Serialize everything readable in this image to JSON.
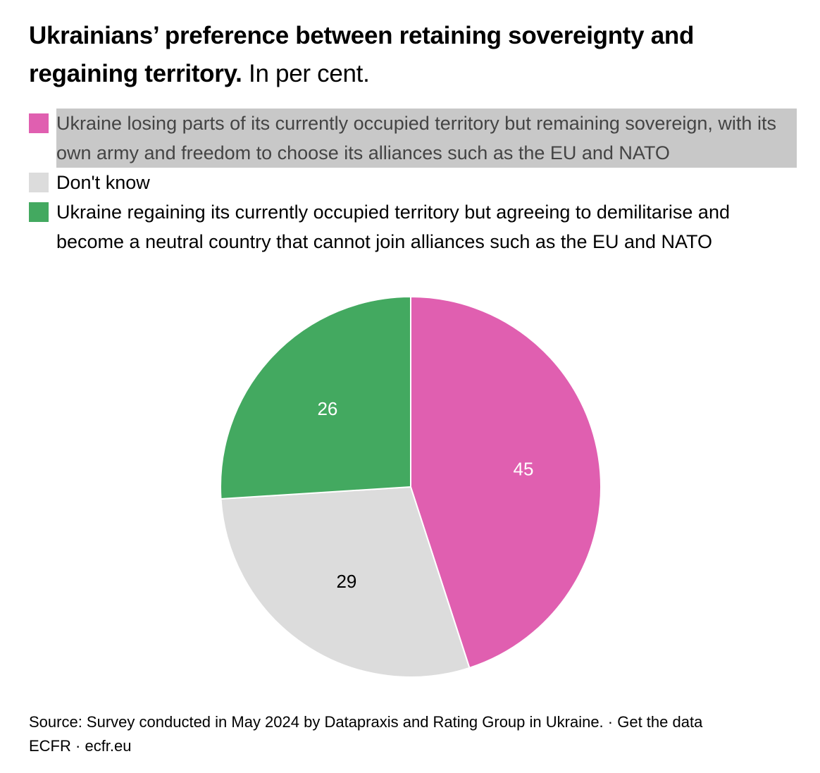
{
  "title": {
    "bold": "Ukrainians’ preference between retaining sovereignty and regaining territory.",
    "subtitle": "In per cent."
  },
  "chart_data": {
    "type": "pie",
    "start": "top",
    "direction": "clockwise",
    "slices": [
      {
        "label": "Ukraine losing parts of its currently occupied territory but remaining sovereign, with its own army and freedom to choose its alliances such as the EU and NATO",
        "value": 45,
        "color": "#e05fb0",
        "label_color": "#ffffff"
      },
      {
        "label": "Don't know",
        "value": 29,
        "color": "#dcdcdc",
        "label_color": "#000000"
      },
      {
        "label": "Ukraine regaining its currently occupied territory but agreeing to demilitarise and become a neutral country that cannot join alliances such as the EU and NATO",
        "value": 26,
        "color": "#43a960",
        "label_color": "#ffffff"
      }
    ],
    "value_labels": [
      "45",
      "29",
      "26"
    ],
    "legend_placement": "top",
    "highlighted_legend_item": 0
  },
  "footer": {
    "source": "Source: Survey conducted in May 2024 by Datapraxis and Rating Group in Ukraine.",
    "separator": " · ",
    "get_data": "Get the data",
    "org": "ECFR",
    "site": "ecfr.eu"
  }
}
